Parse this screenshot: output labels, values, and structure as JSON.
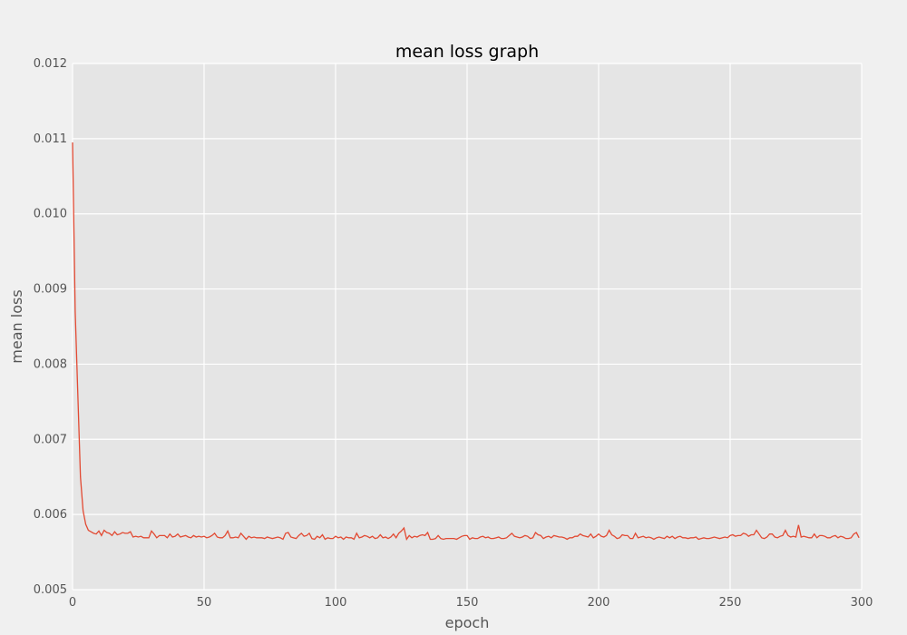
{
  "chart_data": {
    "type": "line",
    "title": "mean loss graph",
    "xlabel": "epoch",
    "ylabel": "mean loss",
    "xlim": [
      0,
      300
    ],
    "ylim": [
      0.005,
      0.012
    ],
    "x_ticks": [
      0,
      50,
      100,
      150,
      200,
      250,
      300
    ],
    "y_ticks": [
      0.005,
      0.006,
      0.007,
      0.008,
      0.009,
      0.01,
      0.011,
      0.012
    ],
    "x_tick_labels": [
      "0",
      "50",
      "100",
      "150",
      "200",
      "250",
      "300"
    ],
    "y_tick_labels": [
      "0.005",
      "0.006",
      "0.007",
      "0.008",
      "0.009",
      "0.010",
      "0.011",
      "0.012"
    ],
    "grid": true,
    "legend": "none",
    "colors": {
      "line": "#e24a33",
      "plot_background": "#e5e5e5",
      "figure_background": "#f0f0f0",
      "grid": "#ffffff"
    },
    "series": [
      {
        "x_start": 0,
        "x_step": 1,
        "values": [
          0.01095,
          0.0087,
          0.0076,
          0.0065,
          0.00605,
          0.00587,
          0.00579,
          0.00577,
          0.00575,
          0.00574,
          0.00578,
          0.00572,
          0.00579,
          0.00576,
          0.00575,
          0.00572,
          0.00577,
          0.00573,
          0.00574,
          0.00576,
          0.00575,
          0.00575,
          0.00577,
          0.0057,
          0.00571,
          0.0057,
          0.00571,
          0.00569,
          0.00569,
          0.00569,
          0.00578,
          0.00574,
          0.00569,
          0.00572,
          0.00572,
          0.00572,
          0.00569,
          0.00574,
          0.0057,
          0.00571,
          0.00574,
          0.0057,
          0.00571,
          0.00572,
          0.0057,
          0.00569,
          0.00572,
          0.0057,
          0.00571,
          0.0057,
          0.00571,
          0.00569,
          0.0057,
          0.00572,
          0.00575,
          0.0057,
          0.00569,
          0.00569,
          0.00572,
          0.00578,
          0.00569,
          0.00569,
          0.0057,
          0.00569,
          0.00575,
          0.00571,
          0.00567,
          0.00571,
          0.00569,
          0.0057,
          0.00569,
          0.00569,
          0.00569,
          0.00568,
          0.0057,
          0.00569,
          0.00568,
          0.00569,
          0.0057,
          0.00569,
          0.00567,
          0.00575,
          0.00576,
          0.0057,
          0.00569,
          0.00568,
          0.00572,
          0.00575,
          0.00571,
          0.00572,
          0.00575,
          0.00568,
          0.00567,
          0.00571,
          0.00569,
          0.00573,
          0.00567,
          0.00569,
          0.00568,
          0.00568,
          0.00571,
          0.00569,
          0.0057,
          0.00567,
          0.0057,
          0.00569,
          0.00569,
          0.00567,
          0.00575,
          0.00569,
          0.0057,
          0.00572,
          0.00571,
          0.00569,
          0.00571,
          0.00568,
          0.00569,
          0.00573,
          0.00569,
          0.0057,
          0.00568,
          0.0057,
          0.00574,
          0.00569,
          0.00575,
          0.00578,
          0.00582,
          0.00567,
          0.00572,
          0.00569,
          0.00571,
          0.0057,
          0.00572,
          0.00573,
          0.00572,
          0.00576,
          0.00567,
          0.00567,
          0.00568,
          0.00572,
          0.00568,
          0.00567,
          0.00568,
          0.00568,
          0.00568,
          0.00568,
          0.00567,
          0.00569,
          0.00571,
          0.00572,
          0.00572,
          0.00567,
          0.00569,
          0.00568,
          0.00568,
          0.0057,
          0.00571,
          0.00569,
          0.0057,
          0.00568,
          0.00568,
          0.00569,
          0.0057,
          0.00568,
          0.00568,
          0.00569,
          0.00572,
          0.00575,
          0.00571,
          0.0057,
          0.00569,
          0.0057,
          0.00572,
          0.00571,
          0.00568,
          0.00569,
          0.00576,
          0.00573,
          0.00572,
          0.00568,
          0.0057,
          0.00571,
          0.00569,
          0.00572,
          0.00571,
          0.0057,
          0.0057,
          0.00569,
          0.00567,
          0.00569,
          0.00569,
          0.00571,
          0.00571,
          0.00574,
          0.00572,
          0.00571,
          0.0057,
          0.00574,
          0.00569,
          0.00571,
          0.00574,
          0.00571,
          0.0057,
          0.00572,
          0.00579,
          0.00573,
          0.00571,
          0.00568,
          0.00569,
          0.00573,
          0.00572,
          0.00572,
          0.00568,
          0.00568,
          0.00575,
          0.00569,
          0.0057,
          0.00571,
          0.00569,
          0.0057,
          0.00569,
          0.00567,
          0.00569,
          0.0057,
          0.00569,
          0.00568,
          0.00571,
          0.00569,
          0.00571,
          0.00568,
          0.0057,
          0.00571,
          0.00569,
          0.00569,
          0.00568,
          0.00569,
          0.00569,
          0.0057,
          0.00567,
          0.00568,
          0.00569,
          0.00568,
          0.00568,
          0.00569,
          0.0057,
          0.00569,
          0.00568,
          0.00569,
          0.0057,
          0.00569,
          0.00572,
          0.00573,
          0.00571,
          0.00572,
          0.00572,
          0.00575,
          0.00574,
          0.00571,
          0.00573,
          0.00573,
          0.00579,
          0.00574,
          0.00569,
          0.00568,
          0.0057,
          0.00574,
          0.00574,
          0.0057,
          0.00569,
          0.00571,
          0.00572,
          0.00579,
          0.00572,
          0.0057,
          0.00571,
          0.0057,
          0.00586,
          0.0057,
          0.00571,
          0.0057,
          0.00569,
          0.00569,
          0.00574,
          0.00569,
          0.00572,
          0.00572,
          0.00571,
          0.00569,
          0.00569,
          0.00571,
          0.00572,
          0.00569,
          0.00571,
          0.0057,
          0.00568,
          0.00568,
          0.00569,
          0.00574,
          0.00576,
          0.00569
        ]
      }
    ]
  }
}
